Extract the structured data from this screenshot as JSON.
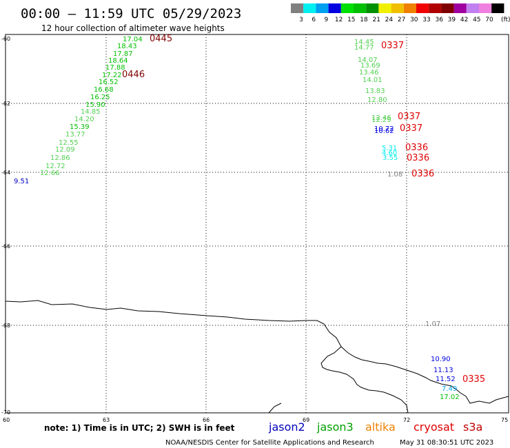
{
  "header": {
    "title": "00:00 – 11:59 UTC 05/29/2023",
    "subtitle": "12 hour collection of altimeter wave heights"
  },
  "legend": {
    "unit": "(ft)",
    "bins": [
      {
        "label": "3",
        "color": "#808080"
      },
      {
        "label": "6",
        "color": "#00f0f0"
      },
      {
        "label": "9",
        "color": "#00a0f0"
      },
      {
        "label": "12",
        "color": "#0000e0"
      },
      {
        "label": "15",
        "color": "#00e000"
      },
      {
        "label": "18",
        "color": "#00c000"
      },
      {
        "label": "21",
        "color": "#009000"
      },
      {
        "label": "24",
        "color": "#f0f000"
      },
      {
        "label": "27",
        "color": "#f0c000"
      },
      {
        "label": "30",
        "color": "#f08000"
      },
      {
        "label": "33",
        "color": "#f00000"
      },
      {
        "label": "36",
        "color": "#b00000"
      },
      {
        "label": "39",
        "color": "#800000"
      },
      {
        "label": "42",
        "color": "#a000a0"
      },
      {
        "label": "45",
        "color": "#c080f0"
      },
      {
        "label": "70",
        "color": "#f080e0"
      },
      {
        "label": "",
        "color": "#000000"
      }
    ]
  },
  "axes": {
    "lat_labels": [
      "-60",
      "-62",
      "-64",
      "-66",
      "-68",
      "-70"
    ],
    "lon_labels": [
      "60",
      "63",
      "66",
      "69",
      "72",
      "75"
    ]
  },
  "tracks": [
    {
      "satellite": "jason3",
      "time": "0445",
      "time_color": "#800000",
      "color": "#00c000",
      "values": [
        "17.04",
        "18.43",
        "17.87",
        "18.64",
        "17.88",
        "17.22",
        "16.52",
        "16.68",
        "16.25",
        "15.90",
        "14.85",
        "14.20",
        "15.39",
        "13.77",
        "12.55",
        "12.09",
        "12.86",
        "12.72",
        "12.66"
      ]
    },
    {
      "satellite": "jason3",
      "time": "0446",
      "time_color": "#800000",
      "values": []
    },
    {
      "satellite": "jason2",
      "values": [
        "9.51"
      ]
    },
    {
      "satellite": "cryosat",
      "time": "0337",
      "values": [
        "14.45",
        "14.77",
        "14.07",
        "13.69",
        "13.46",
        "14.01",
        "13.83",
        "12.80",
        "12.46",
        "12.29",
        "10.72",
        "10.62"
      ]
    },
    {
      "satellite": "cryosat",
      "time": "0337",
      "values": []
    },
    {
      "satellite": "cryosat",
      "time": "0337",
      "values": []
    },
    {
      "satellite": "cryosat",
      "time": "0336",
      "values": [
        "5.31",
        "4.60",
        "3.55"
      ]
    },
    {
      "satellite": "cryosat",
      "time": "0336",
      "values": []
    },
    {
      "satellite": "cryosat",
      "time": "0336",
      "values": [
        "1.08"
      ]
    },
    {
      "satellite": "cryosat",
      "time": "0335",
      "values": [
        "1.07",
        "10.90",
        "11.13",
        "11.52",
        "7.49",
        "17.02"
      ]
    }
  ],
  "footer": {
    "note": "note: 1) Time is in UTC; 2) SWH is in feet",
    "satellites": [
      {
        "name": "jason2",
        "color": "#0000c0"
      },
      {
        "name": "jason3",
        "color": "#00a000"
      },
      {
        "name": "altika",
        "color": "#f08000"
      },
      {
        "name": "cryosat",
        "color": "#e00000"
      },
      {
        "name": "s3a",
        "color": "#c00000"
      }
    ],
    "credit": "NOAA/NESDIS Center for Satellite Applications and Research",
    "timestamp": "May 31 08:30:51 UTC 2023"
  }
}
